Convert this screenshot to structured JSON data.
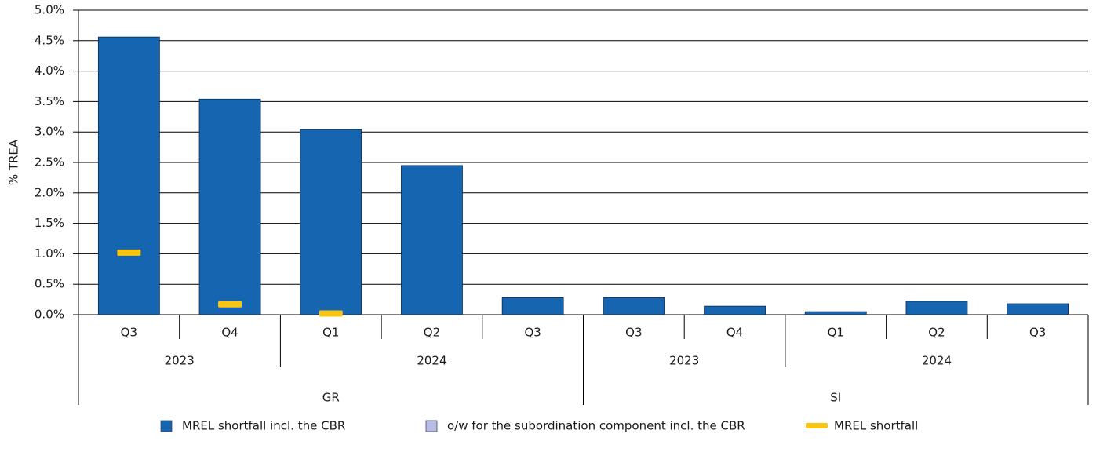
{
  "chart_data": {
    "type": "bar",
    "y_axis_label": "% TREA",
    "groups": [
      {
        "label": "GR",
        "years": [
          {
            "label": "2023",
            "quarters": [
              "Q3",
              "Q4"
            ]
          },
          {
            "label": "2024",
            "quarters": [
              "Q1",
              "Q2",
              "Q3"
            ]
          }
        ]
      },
      {
        "label": "SI",
        "years": [
          {
            "label": "2023",
            "quarters": [
              "Q3",
              "Q4"
            ]
          },
          {
            "label": "2024",
            "quarters": [
              "Q1",
              "Q2",
              "Q3"
            ]
          }
        ]
      }
    ],
    "series": [
      {
        "name": "MREL shortfall incl. the CBR",
        "type": "bar",
        "color": "#1565b0",
        "values": [
          4.56,
          3.54,
          3.04,
          2.45,
          0.28,
          0.28,
          0.14,
          0.05,
          0.22,
          0.18
        ]
      },
      {
        "name": "o/w for the subordination component incl. the CBR",
        "type": "bar",
        "color": "#b8bde3",
        "values": [
          null,
          null,
          null,
          null,
          null,
          null,
          null,
          null,
          null,
          null
        ]
      },
      {
        "name": "MREL shortfall",
        "type": "marker",
        "color": "#f7c512",
        "values": [
          1.02,
          0.17,
          0.02,
          null,
          null,
          null,
          null,
          null,
          null,
          null
        ]
      }
    ],
    "ylim": [
      0,
      5
    ],
    "yticks": [
      {
        "value": 0,
        "label": "0.0%"
      },
      {
        "value": 0.5,
        "label": "0.5%"
      },
      {
        "value": 1,
        "label": "1.0%"
      },
      {
        "value": 1.5,
        "label": "1.5%"
      },
      {
        "value": 2,
        "label": "2.0%"
      },
      {
        "value": 2.5,
        "label": "2.5%"
      },
      {
        "value": 3,
        "label": "3.0%"
      },
      {
        "value": 3.5,
        "label": "3.5%"
      },
      {
        "value": 4,
        "label": "4.0%"
      },
      {
        "value": 4.5,
        "label": "4.5%"
      },
      {
        "value": 5,
        "label": "5.0%"
      }
    ],
    "grid": true
  }
}
